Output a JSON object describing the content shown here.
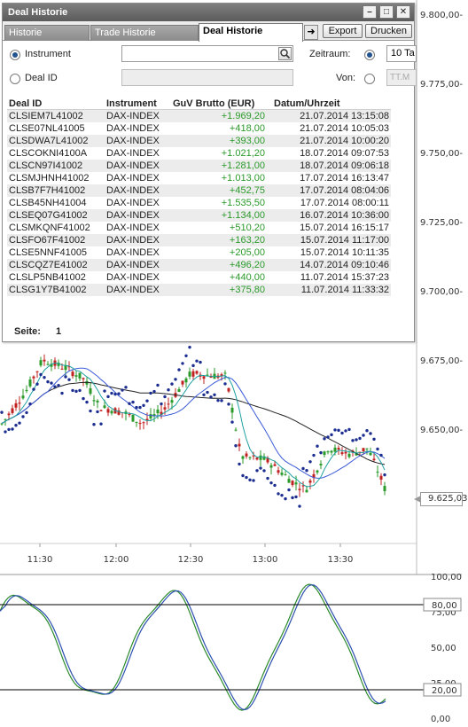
{
  "window": {
    "title": "Deal Historie"
  },
  "tabs": [
    {
      "label": "Historie"
    },
    {
      "label": "Trade Historie"
    },
    {
      "label": "Deal Historie"
    }
  ],
  "buttons": {
    "export": "Export",
    "print": "Drucken"
  },
  "filters": {
    "instrument_label": "Instrument",
    "deal_id_label": "Deal ID",
    "zeitraum_label": "Zeitraum:",
    "zeitraum_value": "10 Ta",
    "von_label": "Von:",
    "von_placeholder": "TT.M"
  },
  "table": {
    "headers": [
      "Deal ID",
      "Instrument",
      "GuV Brutto (EUR)",
      "Datum/Uhrzeit"
    ],
    "rows": [
      [
        "CLSIEM7L41002",
        "DAX-INDEX",
        "+1.969,20",
        "21.07.2014 13:15:08"
      ],
      [
        "CLSE07NL41005",
        "DAX-INDEX",
        "+418,00",
        "21.07.2014 10:05:03"
      ],
      [
        "CLSDWA7L41002",
        "DAX-INDEX",
        "+393,00",
        "21.07.2014 10:00:20"
      ],
      [
        "CLSCOKNI4100A",
        "DAX-INDEX",
        "+1.021,20",
        "18.07.2014 09:07:53"
      ],
      [
        "CLSCN97I41002",
        "DAX-INDEX",
        "+1.281,00",
        "18.07.2014 09:06:18"
      ],
      [
        "CLSMJHNH41002",
        "DAX-INDEX",
        "+1.013,00",
        "17.07.2014 16:13:47"
      ],
      [
        "CLSB7F7H41002",
        "DAX-INDEX",
        "+452,75",
        "17.07.2014 08:04:06"
      ],
      [
        "CLSB45NH41004",
        "DAX-INDEX",
        "+1.535,50",
        "17.07.2014 08:00:11"
      ],
      [
        "CLSEQ07G41002",
        "DAX-INDEX",
        "+1.134,00",
        "16.07.2014 10:36:00"
      ],
      [
        "CLSMKQNF41002",
        "DAX-INDEX",
        "+510,20",
        "15.07.2014 16:15:17"
      ],
      [
        "CLSFO67F41002",
        "DAX-INDEX",
        "+163,20",
        "15.07.2014 11:17:00"
      ],
      [
        "CLSE5NNF41005",
        "DAX-INDEX",
        "+205,00",
        "15.07.2014 10:11:35"
      ],
      [
        "CLSCQZ7E41002",
        "DAX-INDEX",
        "+496,20",
        "14.07.2014 09:10:46"
      ],
      [
        "CLSLP5NB41002",
        "DAX-INDEX",
        "+440,00",
        "11.07.2014 15:37:23"
      ],
      [
        "CLSG1Y7B41002",
        "DAX-INDEX",
        "+375,80",
        "11.07.2014 11:33:32"
      ]
    ]
  },
  "pager": {
    "label": "Seite:",
    "value": "1"
  },
  "chart": {
    "price_ticks": [
      "9.800,00-",
      "9.775,00-",
      "9.750,00-",
      "9.725,00-",
      "9.700,00-",
      "9.675,00-",
      "9.650,00-"
    ],
    "price_tick_values": [
      9800,
      9775,
      9750,
      9725,
      9700,
      9675,
      9650
    ],
    "last_price": "9.625,03",
    "last_price_value": 9625.03,
    "time_labels": [
      "11:30",
      "12:00",
      "12:30",
      "13:00",
      "13:30"
    ],
    "osc_ticks": [
      "100,00",
      "75,00",
      "50,00",
      "25,00",
      "0,00"
    ],
    "osc_tick_values": [
      100,
      75,
      50,
      25,
      0
    ],
    "osc_levels": [
      "80,00",
      "20,00"
    ],
    "osc_level_values": [
      80,
      20
    ],
    "colors": {
      "candle_up": "#2a9a2a",
      "candle_down": "#c0201f",
      "psar": "#1b2d8f",
      "ma_long": "#222222",
      "ma_mid": "#3a5ad8",
      "ma_short": "#1fa0a0",
      "osc_k": "#2a8a2a",
      "osc_d": "#2c4fb0"
    }
  }
}
